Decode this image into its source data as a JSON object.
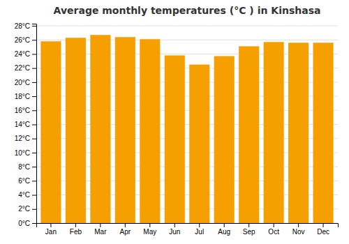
{
  "chart_data": {
    "type": "bar",
    "title": "Average monthly temperatures (°C ) in Kinshasa",
    "categories": [
      "Jan",
      "Feb",
      "Mar",
      "Apr",
      "May",
      "Jun",
      "Jul",
      "Aug",
      "Sep",
      "Oct",
      "Nov",
      "Dec"
    ],
    "values": [
      25.8,
      26.3,
      26.7,
      26.4,
      26.1,
      23.8,
      22.5,
      23.7,
      25.1,
      25.7,
      25.6,
      25.6
    ],
    "color": "#F5A000",
    "ylim": [
      0,
      28.3
    ],
    "yticks": [
      {
        "value": 0,
        "label": "0°C"
      },
      {
        "value": 2,
        "label": "2°C"
      },
      {
        "value": 4,
        "label": "4°C"
      },
      {
        "value": 6,
        "label": "6°C"
      },
      {
        "value": 8,
        "label": "8°C"
      },
      {
        "value": 10,
        "label": "10°C"
      },
      {
        "value": 12,
        "label": "12°C"
      },
      {
        "value": 14,
        "label": "14°C"
      },
      {
        "value": 16,
        "label": "16°C"
      },
      {
        "value": 18,
        "label": "18°C"
      },
      {
        "value": 20,
        "label": "20°C"
      },
      {
        "value": 22,
        "label": "22°C"
      },
      {
        "value": 24,
        "label": "24°C"
      },
      {
        "value": 26,
        "label": "26°C"
      },
      {
        "value": 28,
        "label": "28°C"
      }
    ],
    "grid": true
  }
}
